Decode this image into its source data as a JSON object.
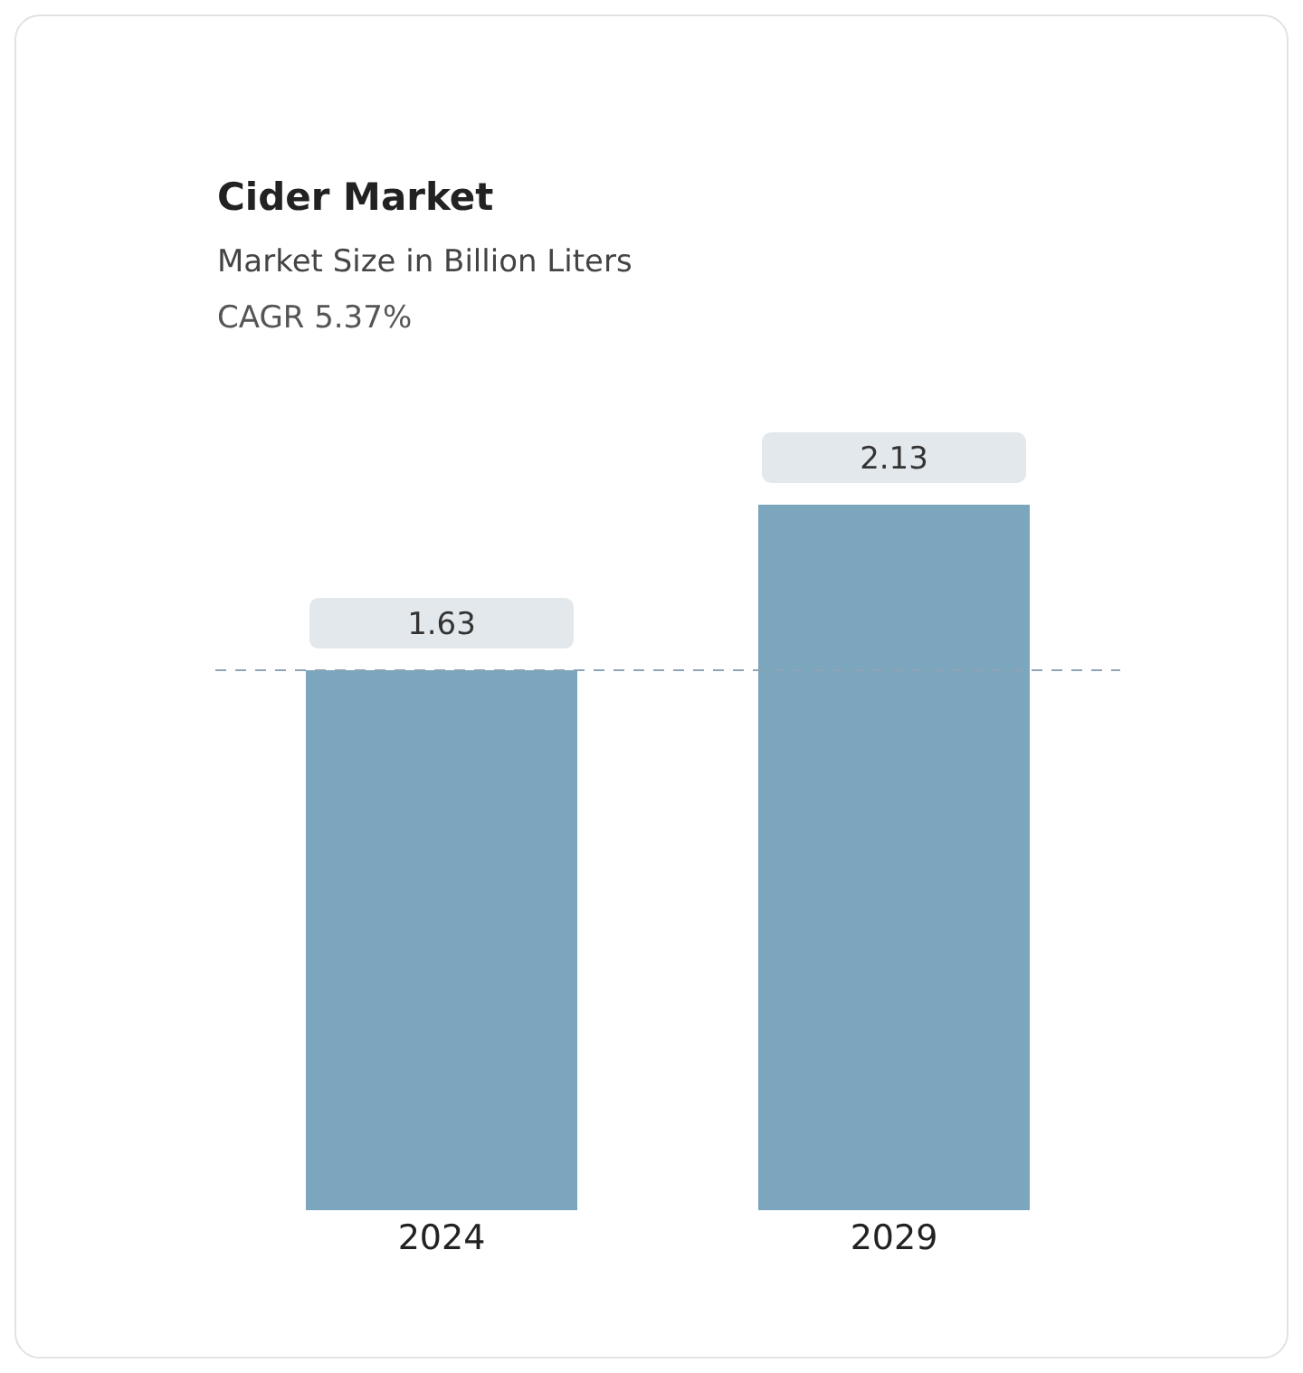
{
  "chart_data": {
    "type": "bar",
    "title": "Cider Market",
    "subtitle": "Market Size in Billion Liters",
    "annotations": [
      "CAGR 5.37%"
    ],
    "categories": [
      "2024",
      "2029"
    ],
    "values": [
      1.63,
      2.13
    ],
    "color": "#7ba6bd",
    "data_labels": true,
    "grid": false,
    "legend": false,
    "ref_lines": [
      {
        "axis": "y",
        "value": 1.63,
        "color": "#8fa3b8",
        "line_style": "dashed"
      }
    ]
  }
}
